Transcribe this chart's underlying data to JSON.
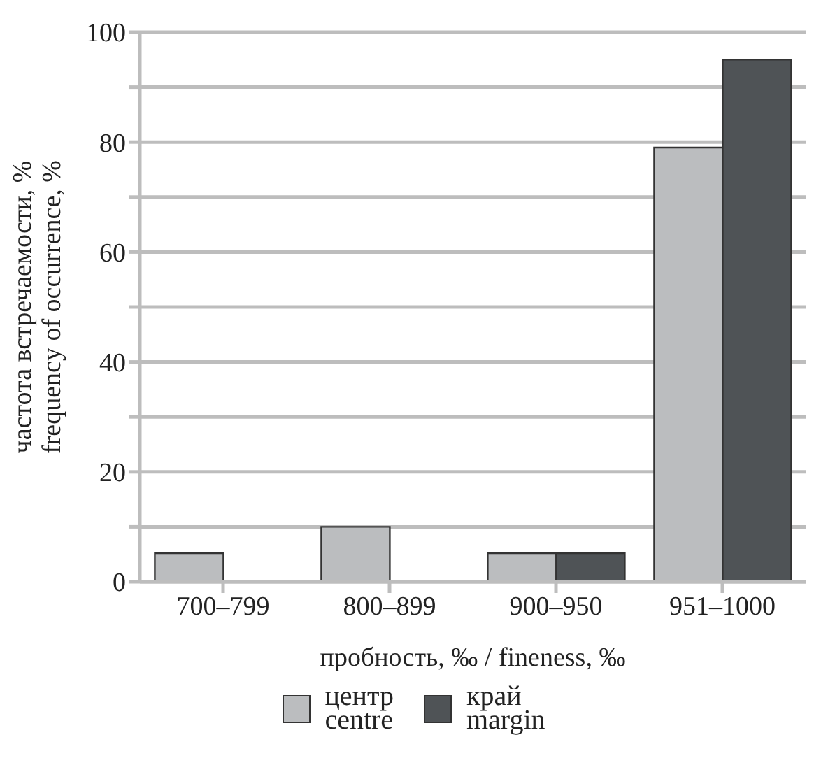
{
  "chart_data": {
    "type": "bar",
    "xlabel": "пробность, ‰ / fineness, ‰",
    "ylabel": "частота встречаемости, %\nfrequency of occurrence, %",
    "categories": [
      "700–799",
      "800–899",
      "900–950",
      "951–1000"
    ],
    "series": [
      {
        "name": "центр\ncentre",
        "color": "#bbbdbf",
        "values": [
          5.2,
          10,
          5.2,
          79
        ]
      },
      {
        "name": "край\nmargin",
        "color": "#4f5356",
        "values": [
          null,
          null,
          5.2,
          95
        ]
      }
    ],
    "ylim": [
      0,
      100
    ],
    "yticks": [
      0,
      {
        "value": 10,
        "label": null
      },
      20,
      {
        "value": 30,
        "label": null
      },
      40,
      {
        "value": 50,
        "label": null
      },
      60,
      {
        "value": 70,
        "label": null
      },
      80,
      {
        "value": 90,
        "label": null
      },
      100
    ],
    "grid": "y",
    "legend": "bottom"
  }
}
